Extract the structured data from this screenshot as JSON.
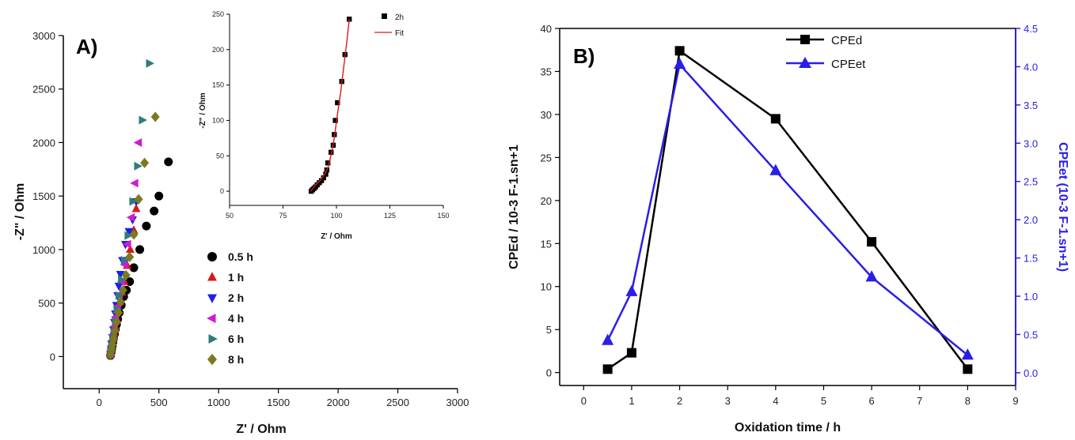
{
  "chart_data": [
    {
      "panel": "A",
      "panel_label": "A)",
      "type": "scatter",
      "xlabel": "Z' / Ohm",
      "ylabel": "-Z\" / Ohm",
      "xlim": [
        -300,
        3000
      ],
      "ylim": [
        -300,
        3000
      ],
      "xticks": [
        0,
        500,
        1000,
        1500,
        2000,
        2500,
        3000
      ],
      "yticks": [
        0,
        500,
        1000,
        1500,
        2000,
        2500,
        3000
      ],
      "colors": {
        "0.5 h": "#000000",
        "1 h": "#d7191c",
        "2 h": "#1f1fe6",
        "4 h": "#d21ad2",
        "6 h": "#2e7d7a",
        "8 h": "#7a7a1e"
      },
      "series": [
        {
          "name": "0.5 h",
          "marker": "circle",
          "color": "#000000",
          "x": [
            95,
            100,
            105,
            110,
            115,
            120,
            128,
            136,
            145,
            155,
            168,
            185,
            205,
            228,
            255,
            290,
            340,
            395,
            460,
            500,
            580
          ],
          "y": [
            10,
            40,
            70,
            100,
            135,
            170,
            210,
            255,
            300,
            350,
            410,
            480,
            560,
            620,
            700,
            830,
            1000,
            1220,
            1360,
            1500,
            1820
          ]
        },
        {
          "name": "1 h",
          "marker": "triangle-up",
          "color": "#d7191c",
          "x": [
            95,
            100,
            108,
            115,
            125,
            135,
            148,
            160,
            175,
            190,
            210,
            235,
            260,
            290,
            310
          ],
          "y": [
            20,
            60,
            110,
            160,
            220,
            280,
            350,
            430,
            510,
            600,
            700,
            850,
            1000,
            1180,
            1380
          ]
        },
        {
          "name": "2 h",
          "marker": "triangle-down",
          "color": "#1f1fe6",
          "x": [
            95,
            100,
            105,
            112,
            120,
            128,
            136,
            145,
            155,
            165,
            178,
            195,
            220,
            250,
            280,
            310
          ],
          "y": [
            20,
            70,
            120,
            180,
            250,
            320,
            400,
            480,
            570,
            660,
            770,
            900,
            1050,
            1170,
            1280,
            1450
          ]
        },
        {
          "name": "4 h",
          "marker": "triangle-left",
          "color": "#d21ad2",
          "x": [
            95,
            102,
            110,
            118,
            128,
            140,
            155,
            172,
            190,
            215,
            240,
            270,
            300,
            330
          ],
          "y": [
            20,
            70,
            130,
            200,
            280,
            370,
            470,
            580,
            700,
            860,
            1050,
            1300,
            1620,
            2000
          ]
        },
        {
          "name": "6 h",
          "marker": "triangle-right",
          "color": "#2e7d7a",
          "x": [
            95,
            103,
            112,
            122,
            134,
            148,
            165,
            185,
            210,
            240,
            280,
            320,
            360,
            420
          ],
          "y": [
            20,
            80,
            150,
            230,
            330,
            440,
            570,
            720,
            900,
            1130,
            1450,
            1780,
            2210,
            2740
          ]
        },
        {
          "name": "8 h",
          "marker": "diamond",
          "color": "#7a7a1e",
          "x": [
            95,
            102,
            110,
            120,
            132,
            146,
            162,
            180,
            200,
            225,
            255,
            290,
            330,
            380,
            470
          ],
          "y": [
            15,
            60,
            110,
            170,
            240,
            320,
            410,
            510,
            620,
            760,
            930,
            1140,
            1470,
            1810,
            2240
          ]
        }
      ],
      "inset": {
        "type": "scatter",
        "xlabel": "Z' / Ohm",
        "ylabel": "-Z\" / Ohm",
        "xlim": [
          50,
          150
        ],
        "ylim": [
          -20,
          250
        ],
        "xticks": [
          50,
          75,
          100,
          125,
          150
        ],
        "yticks": [
          0,
          50,
          100,
          150,
          200,
          250
        ],
        "series": [
          {
            "name": "2h",
            "marker": "square",
            "color": "#000000",
            "x": [
              88.2,
              88.8,
              89.5,
              90.2,
              91.0,
              92.0,
              93.0,
              94.0,
              95.0,
              95.5,
              96.0,
              97.5,
              98.5,
              99.0,
              99.5,
              100.5,
              102.5,
              104.0,
              106.0
            ],
            "y": [
              0,
              2,
              4,
              6,
              9,
              12,
              15,
              19,
              24,
              30,
              40,
              55,
              65,
              80,
              100,
              125,
              155,
              193,
              243
            ]
          },
          {
            "name": "Fit",
            "line": true,
            "color": "#d7191c",
            "x": [
              88,
              89,
              90,
              91,
              92,
              93,
              94,
              95,
              96,
              97,
              98,
              99,
              100,
              101,
              102,
              103,
              104,
              105,
              106
            ],
            "y": [
              0,
              4,
              8,
              11,
              14,
              18,
              22,
              27,
              33,
              45,
              58,
              75,
              98,
              120,
              140,
              165,
              190,
              215,
              243
            ]
          }
        ]
      }
    },
    {
      "panel": "B",
      "panel_label": "B)",
      "type": "line",
      "xlabel": "Oxidation time / h",
      "ylabel_left": "CPEd / 10-3 F-1.sn+1",
      "ylabel_right": "CPEet (10-3 F-1.sn+1)",
      "xlim": [
        -0.5,
        9
      ],
      "ylim_left": [
        -1.5,
        40
      ],
      "ylim_right": [
        -0.1666,
        4.5
      ],
      "xticks": [
        0,
        1,
        2,
        3,
        4,
        5,
        6,
        7,
        8,
        9
      ],
      "yticks_left": [
        0,
        5,
        10,
        15,
        20,
        25,
        30,
        35,
        40
      ],
      "yticks_right": [
        0.0,
        0.5,
        1.0,
        1.5,
        2.0,
        2.5,
        3.0,
        3.5,
        4.0,
        4.5
      ],
      "accent_color": "#2a1ee6",
      "series": [
        {
          "name": "CPEd",
          "axis": "left",
          "marker": "square",
          "color": "#000000",
          "x": [
            0.5,
            1,
            2,
            4,
            6,
            8
          ],
          "y": [
            0.4,
            2.3,
            37.4,
            29.5,
            15.2,
            0.4
          ]
        },
        {
          "name": "CPEet",
          "axis": "right",
          "marker": "triangle-up",
          "color": "#2a1ee6",
          "x": [
            0.5,
            1,
            2,
            4,
            6,
            8
          ],
          "y": [
            0.42,
            1.06,
            4.03,
            2.64,
            1.25,
            0.23
          ]
        }
      ]
    }
  ]
}
